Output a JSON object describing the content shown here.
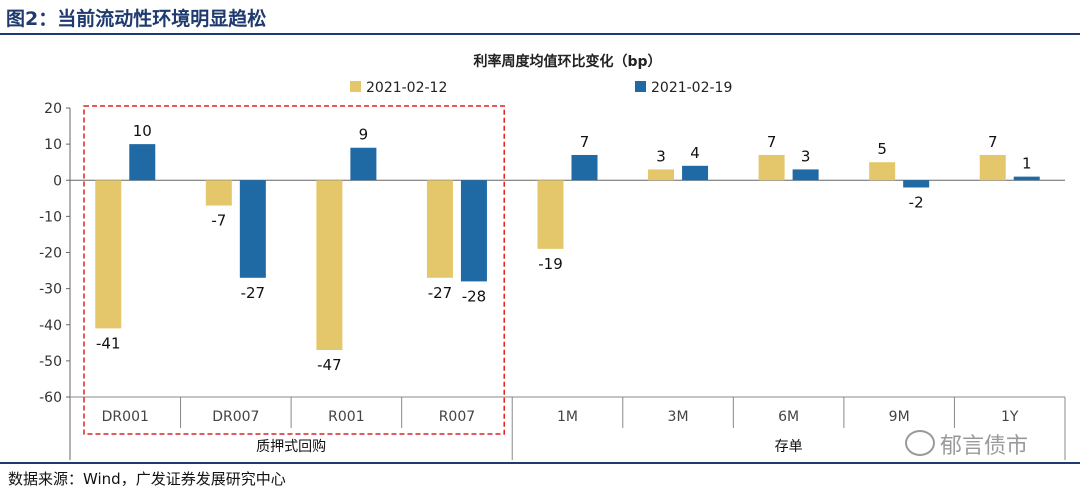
{
  "figure_title": "图2：当前流动性环境明显趋松",
  "source_note": "数据来源：Wind，广发证券发展研究中心",
  "watermark": "郁言债市",
  "colors": {
    "series1": "#E5C76B",
    "series2": "#1F6AA5",
    "highlight": "#E02020",
    "rule": "#1f3a6e"
  },
  "chart_data": {
    "type": "bar",
    "title": "利率周度均值环比变化（bp）",
    "categories": [
      "DR001",
      "DR007",
      "R001",
      "R007",
      "1M",
      "3M",
      "6M",
      "9M",
      "1Y"
    ],
    "groups": [
      {
        "label": "质押式回购",
        "start": 0,
        "end": 4
      },
      {
        "label": "存单",
        "start": 4,
        "end": 9
      }
    ],
    "series": [
      {
        "name": "2021-02-12",
        "values": [
          -41,
          -7,
          -47,
          -27,
          -19,
          3,
          7,
          5,
          7
        ]
      },
      {
        "name": "2021-02-19",
        "values": [
          10,
          -27,
          9,
          -28,
          7,
          4,
          3,
          -2,
          1
        ]
      }
    ],
    "ylim": [
      -60,
      20
    ],
    "yticks": [
      20,
      10,
      0,
      -10,
      -20,
      -30,
      -40,
      -50,
      -60
    ],
    "legend_position": "top",
    "grid": false,
    "highlight_group": "质押式回购"
  }
}
